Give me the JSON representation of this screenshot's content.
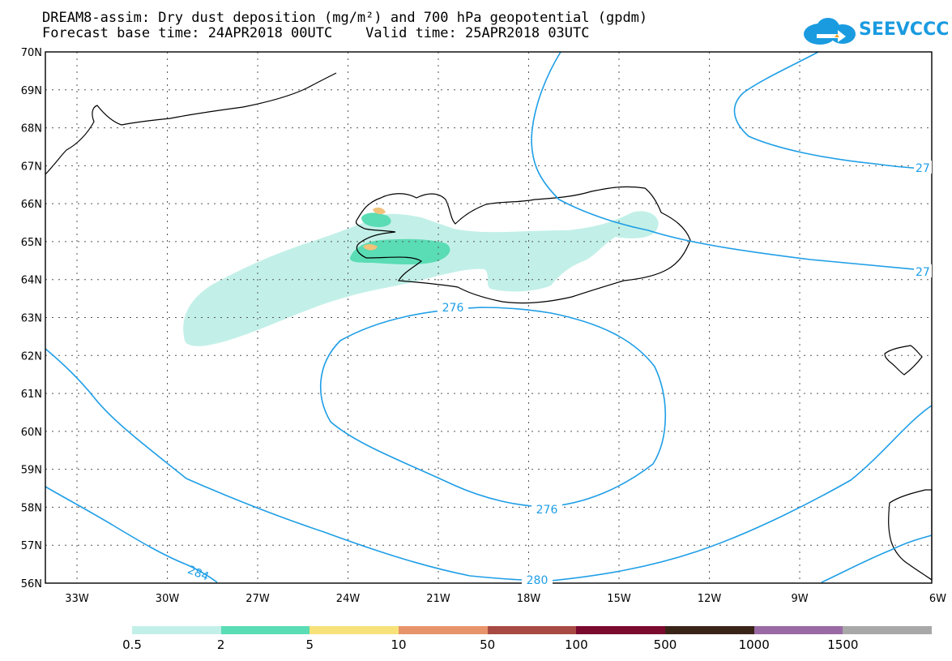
{
  "title": {
    "line1": "DREAM8-assim: Dry dust deposition (mg/m²) and 700 hPa geopotential (gpdm)",
    "line2": "Forecast base time: 24APR2018 00UTC    Valid time: 25APR2018 03UTC"
  },
  "logo": {
    "text": "SEEVCCC",
    "icon": "cloud-arrow-icon",
    "color": "#1a9be0"
  },
  "map": {
    "lat_labels": [
      "70N",
      "69N",
      "68N",
      "67N",
      "66N",
      "65N",
      "64N",
      "63N",
      "62N",
      "61N",
      "60N",
      "59N",
      "58N",
      "57N",
      "56N"
    ],
    "lon_labels": [
      "33W",
      "30W",
      "27W",
      "24W",
      "21W",
      "18W",
      "15W",
      "12W",
      "9W",
      "6W"
    ],
    "contour_color": "#1e9ee6",
    "contour_labels": [
      "276",
      "276",
      "280",
      "284",
      "27",
      "27"
    ]
  },
  "legend": {
    "colors": [
      "#c2f0e8",
      "#5adcb4",
      "#f7e27a",
      "#e8946a",
      "#a84a44",
      "#7a0a2e",
      "#3a2418",
      "#9a6aa4",
      "#a8a8a8"
    ],
    "labels": [
      "0.5",
      "2",
      "5",
      "10",
      "50",
      "100",
      "500",
      "1000",
      "1500"
    ]
  }
}
